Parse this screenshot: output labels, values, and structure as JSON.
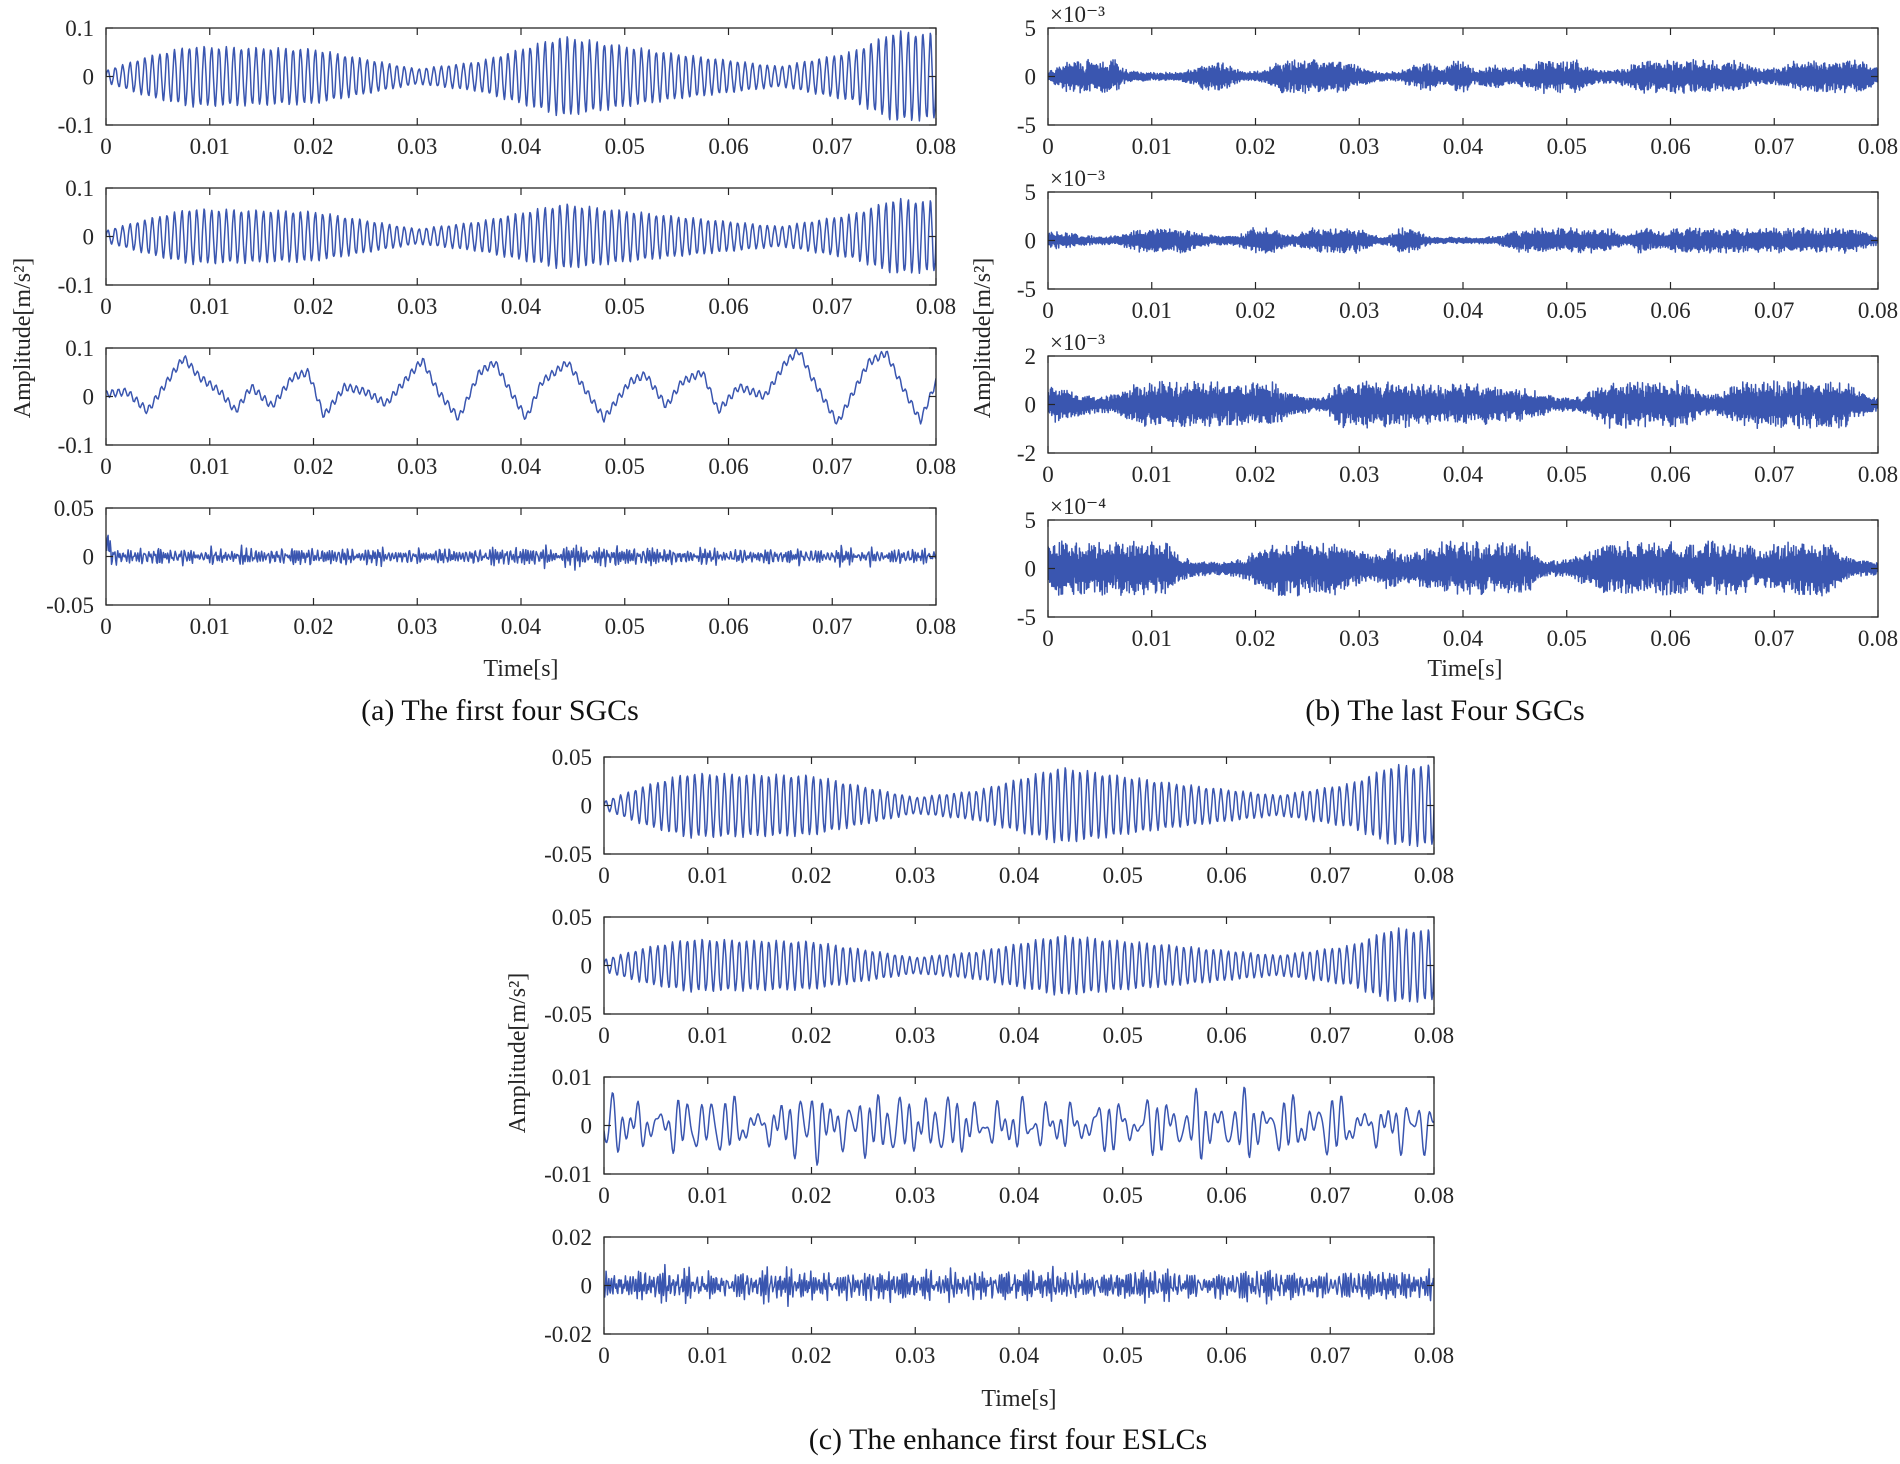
{
  "figure": {
    "trace_color": "#3a56b0",
    "axis_color": "#262626"
  },
  "panels": [
    {
      "id": "a",
      "caption": "(a) The first four SGCs",
      "ylabel": "Amplitude[m/s²]",
      "xlabel": "Time[s]"
    },
    {
      "id": "b",
      "caption": "(b) The last Four SGCs",
      "ylabel": "Amplitude[m/s²]",
      "xlabel": "Time[s]"
    },
    {
      "id": "c",
      "caption": "(c) The enhance first four ESLCs",
      "ylabel": "Amplitude[m/s²]",
      "xlabel": "Time[s]"
    }
  ],
  "chart_data": [
    {
      "type": "line",
      "panel": "a",
      "row": 1,
      "xlim": [
        0,
        0.08
      ],
      "ylim": [
        -0.1,
        0.1
      ],
      "xticks": [
        "0",
        "0.01",
        "0.02",
        "0.03",
        "0.04",
        "0.05",
        "0.06",
        "0.07",
        "0.08"
      ],
      "yticks": [
        "0.1",
        "0",
        "-0.1"
      ],
      "yexponent": "",
      "signal": {
        "kind": "tone",
        "carrier_hz": 1400,
        "amplitude_envelope": [
          [
            0,
            0.012
          ],
          [
            0.004,
            0.04
          ],
          [
            0.008,
            0.06
          ],
          [
            0.02,
            0.055
          ],
          [
            0.03,
            0.015
          ],
          [
            0.036,
            0.03
          ],
          [
            0.044,
            0.08
          ],
          [
            0.055,
            0.045
          ],
          [
            0.065,
            0.02
          ],
          [
            0.072,
            0.05
          ],
          [
            0.076,
            0.09
          ],
          [
            0.08,
            0.085
          ]
        ]
      }
    },
    {
      "type": "line",
      "panel": "a",
      "row": 2,
      "xlim": [
        0,
        0.08
      ],
      "ylim": [
        -0.1,
        0.1
      ],
      "xticks": [
        "0",
        "0.01",
        "0.02",
        "0.03",
        "0.04",
        "0.05",
        "0.06",
        "0.07",
        "0.08"
      ],
      "yticks": [
        "0.1",
        "0",
        "-0.1"
      ],
      "yexponent": "",
      "signal": {
        "kind": "tone",
        "carrier_hz": 1400,
        "amplitude_envelope": [
          [
            0,
            0.012
          ],
          [
            0.004,
            0.035
          ],
          [
            0.008,
            0.055
          ],
          [
            0.02,
            0.05
          ],
          [
            0.03,
            0.015
          ],
          [
            0.036,
            0.03
          ],
          [
            0.044,
            0.065
          ],
          [
            0.055,
            0.04
          ],
          [
            0.065,
            0.02
          ],
          [
            0.072,
            0.045
          ],
          [
            0.076,
            0.075
          ],
          [
            0.08,
            0.07
          ]
        ]
      }
    },
    {
      "type": "line",
      "panel": "a",
      "row": 3,
      "xlim": [
        0,
        0.08
      ],
      "ylim": [
        -0.1,
        0.1
      ],
      "xticks": [
        "0",
        "0.01",
        "0.02",
        "0.03",
        "0.04",
        "0.05",
        "0.06",
        "0.07",
        "0.08"
      ],
      "yticks": [
        "0.1",
        "0",
        "-0.1"
      ],
      "yexponent": "",
      "signal": {
        "kind": "slow",
        "points": [
          [
            0,
            0.005
          ],
          [
            0.002,
            0.01
          ],
          [
            0.004,
            -0.03
          ],
          [
            0.0065,
            0.05
          ],
          [
            0.0075,
            0.08
          ],
          [
            0.009,
            0.04
          ],
          [
            0.011,
            0.01
          ],
          [
            0.0125,
            -0.03
          ],
          [
            0.014,
            0.02
          ],
          [
            0.016,
            -0.02
          ],
          [
            0.018,
            0.04
          ],
          [
            0.0195,
            0.05
          ],
          [
            0.021,
            -0.04
          ],
          [
            0.023,
            0.02
          ],
          [
            0.025,
            0.01
          ],
          [
            0.027,
            -0.015
          ],
          [
            0.0295,
            0.05
          ],
          [
            0.0305,
            0.075
          ],
          [
            0.032,
            0.01
          ],
          [
            0.034,
            -0.045
          ],
          [
            0.036,
            0.05
          ],
          [
            0.0375,
            0.07
          ],
          [
            0.039,
            0.01
          ],
          [
            0.0405,
            -0.045
          ],
          [
            0.042,
            0.03
          ],
          [
            0.0445,
            0.07
          ],
          [
            0.046,
            0.02
          ],
          [
            0.048,
            -0.045
          ],
          [
            0.0505,
            0.03
          ],
          [
            0.052,
            0.045
          ],
          [
            0.054,
            -0.02
          ],
          [
            0.0555,
            0.03
          ],
          [
            0.0575,
            0.05
          ],
          [
            0.059,
            -0.03
          ],
          [
            0.061,
            0.02
          ],
          [
            0.0635,
            0.0
          ],
          [
            0.0655,
            0.07
          ],
          [
            0.0668,
            0.095
          ],
          [
            0.068,
            0.04
          ],
          [
            0.0705,
            -0.055
          ],
          [
            0.0735,
            0.07
          ],
          [
            0.0752,
            0.09
          ],
          [
            0.077,
            0.01
          ],
          [
            0.0785,
            -0.05
          ],
          [
            0.08,
            0.03
          ]
        ]
      }
    },
    {
      "type": "line",
      "panel": "a",
      "row": 4,
      "xlim": [
        0,
        0.08
      ],
      "ylim": [
        -0.05,
        0.05
      ],
      "xticks": [
        "0",
        "0.01",
        "0.02",
        "0.03",
        "0.04",
        "0.05",
        "0.06",
        "0.07",
        "0.08"
      ],
      "yticks": [
        "0.05",
        "0",
        "-0.05"
      ],
      "yexponent": "",
      "signal": {
        "kind": "noise",
        "amplitude": 0.008,
        "spike_at_start": 0.02
      }
    },
    {
      "type": "line",
      "panel": "b",
      "row": 1,
      "xlim": [
        0,
        0.08
      ],
      "ylim": [
        -5,
        5
      ],
      "xticks": [
        "0",
        "0.01",
        "0.02",
        "0.03",
        "0.04",
        "0.05",
        "0.06",
        "0.07",
        "0.08"
      ],
      "yticks": [
        "5",
        "0",
        "-5"
      ],
      "yexponent": "×10⁻³",
      "signal": {
        "kind": "dense",
        "amplitude": 1.6
      }
    },
    {
      "type": "line",
      "panel": "b",
      "row": 2,
      "xlim": [
        0,
        0.08
      ],
      "ylim": [
        -5,
        5
      ],
      "xticks": [
        "0",
        "0.01",
        "0.02",
        "0.03",
        "0.04",
        "0.05",
        "0.06",
        "0.07",
        "0.08"
      ],
      "yticks": [
        "5",
        "0",
        "-5"
      ],
      "yexponent": "×10⁻³",
      "signal": {
        "kind": "dense",
        "amplitude": 1.2
      }
    },
    {
      "type": "line",
      "panel": "b",
      "row": 3,
      "xlim": [
        0,
        0.08
      ],
      "ylim": [
        -2,
        2
      ],
      "xticks": [
        "0",
        "0.01",
        "0.02",
        "0.03",
        "0.04",
        "0.05",
        "0.06",
        "0.07",
        "0.08"
      ],
      "yticks": [
        "2",
        "0",
        "-2"
      ],
      "yexponent": "×10⁻³",
      "signal": {
        "kind": "dense",
        "amplitude": 0.9
      }
    },
    {
      "type": "line",
      "panel": "b",
      "row": 4,
      "xlim": [
        0,
        0.08
      ],
      "ylim": [
        -5,
        5
      ],
      "xticks": [
        "0",
        "0.01",
        "0.02",
        "0.03",
        "0.04",
        "0.05",
        "0.06",
        "0.07",
        "0.08"
      ],
      "yticks": [
        "5",
        "0",
        "-5"
      ],
      "yexponent": "×10⁻⁴",
      "signal": {
        "kind": "dense",
        "amplitude": 2.6
      }
    },
    {
      "type": "line",
      "panel": "c",
      "row": 1,
      "xlim": [
        0,
        0.08
      ],
      "ylim": [
        -0.05,
        0.05
      ],
      "xticks": [
        "0",
        "0.01",
        "0.02",
        "0.03",
        "0.04",
        "0.05",
        "0.06",
        "0.07",
        "0.08"
      ],
      "yticks": [
        "0.05",
        "0",
        "-0.05"
      ],
      "yexponent": "",
      "signal": {
        "kind": "tone",
        "carrier_hz": 1400,
        "amplitude_envelope": [
          [
            0,
            0.004
          ],
          [
            0.004,
            0.02
          ],
          [
            0.008,
            0.032
          ],
          [
            0.02,
            0.03
          ],
          [
            0.03,
            0.008
          ],
          [
            0.036,
            0.015
          ],
          [
            0.044,
            0.038
          ],
          [
            0.055,
            0.022
          ],
          [
            0.065,
            0.01
          ],
          [
            0.072,
            0.022
          ],
          [
            0.076,
            0.04
          ],
          [
            0.08,
            0.04
          ]
        ]
      }
    },
    {
      "type": "line",
      "panel": "c",
      "row": 2,
      "xlim": [
        0,
        0.08
      ],
      "ylim": [
        -0.05,
        0.05
      ],
      "xticks": [
        "0",
        "0.01",
        "0.02",
        "0.03",
        "0.04",
        "0.05",
        "0.06",
        "0.07",
        "0.08"
      ],
      "yticks": [
        "0.05",
        "0",
        "-0.05"
      ],
      "yexponent": "",
      "signal": {
        "kind": "tone",
        "carrier_hz": 1400,
        "amplitude_envelope": [
          [
            0,
            0.006
          ],
          [
            0.004,
            0.018
          ],
          [
            0.008,
            0.026
          ],
          [
            0.02,
            0.024
          ],
          [
            0.03,
            0.008
          ],
          [
            0.036,
            0.014
          ],
          [
            0.044,
            0.03
          ],
          [
            0.055,
            0.02
          ],
          [
            0.065,
            0.01
          ],
          [
            0.072,
            0.02
          ],
          [
            0.076,
            0.037
          ],
          [
            0.08,
            0.035
          ]
        ]
      }
    },
    {
      "type": "line",
      "panel": "c",
      "row": 3,
      "xlim": [
        0,
        0.08
      ],
      "ylim": [
        -0.01,
        0.01
      ],
      "xticks": [
        "0",
        "0.01",
        "0.02",
        "0.03",
        "0.04",
        "0.05",
        "0.06",
        "0.07",
        "0.08"
      ],
      "yticks": [
        "0.01",
        "0",
        "-0.01"
      ],
      "yexponent": "",
      "signal": {
        "kind": "mid",
        "amplitude": 0.0065
      }
    },
    {
      "type": "line",
      "panel": "c",
      "row": 4,
      "xlim": [
        0,
        0.08
      ],
      "ylim": [
        -0.02,
        0.02
      ],
      "xticks": [
        "0",
        "0.01",
        "0.02",
        "0.03",
        "0.04",
        "0.05",
        "0.06",
        "0.07",
        "0.08"
      ],
      "yticks": [
        "0.02",
        "0",
        "-0.02"
      ],
      "yexponent": "",
      "signal": {
        "kind": "noise",
        "amplitude": 0.0055,
        "spike_at_start": 0
      }
    }
  ]
}
